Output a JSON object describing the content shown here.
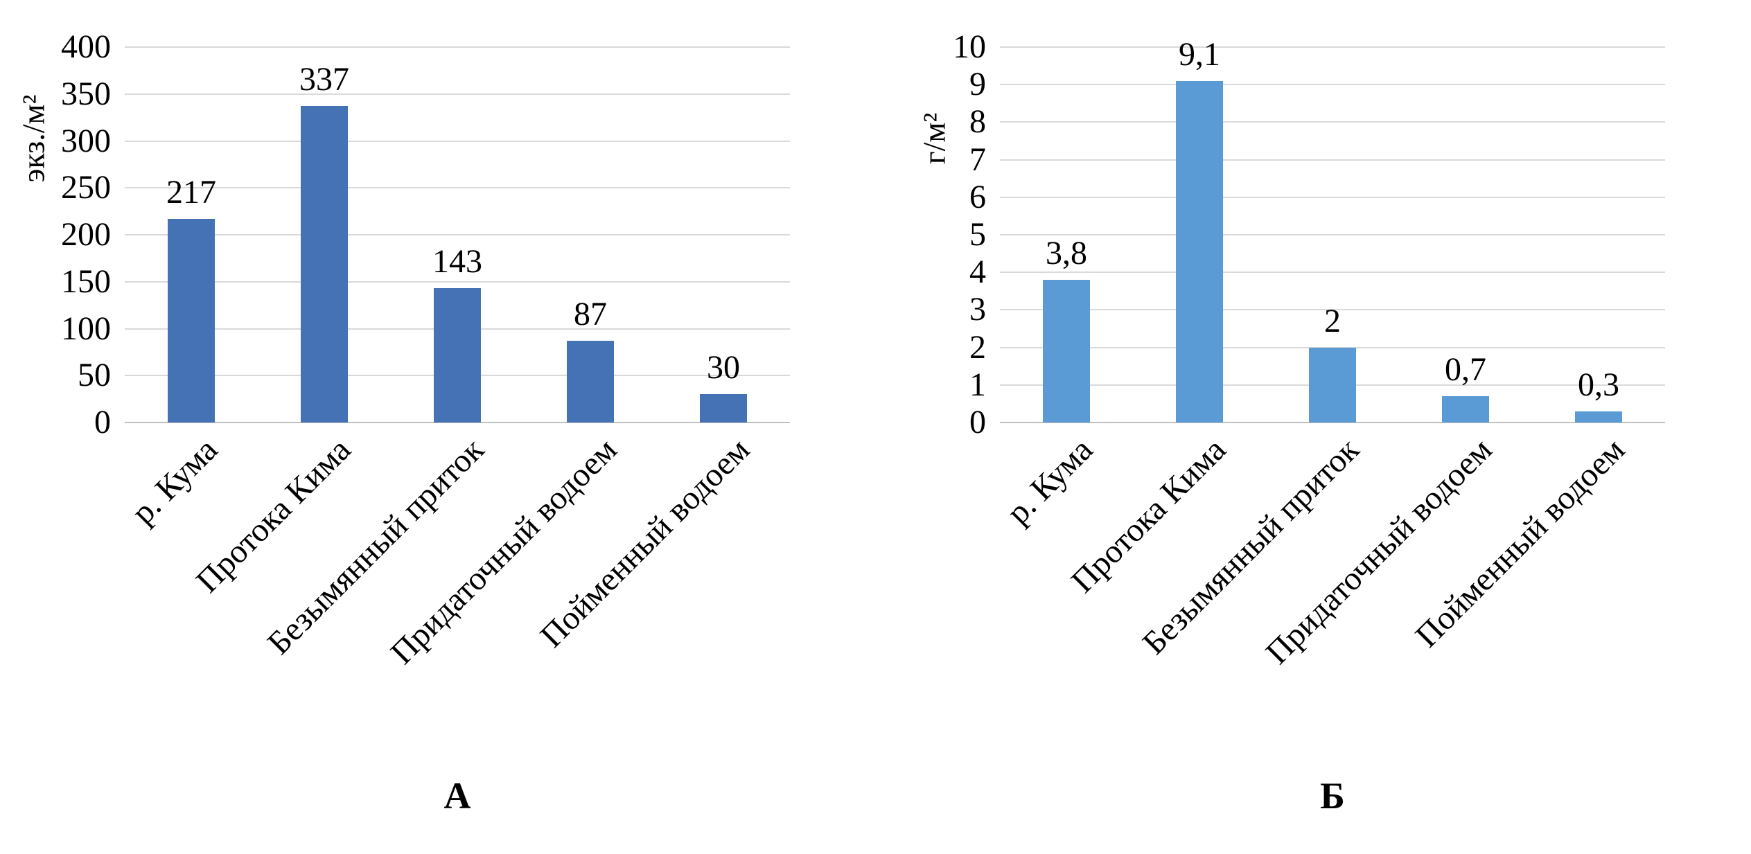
{
  "figure": {
    "background": "#ffffff"
  },
  "chart_data": [
    {
      "type": "bar",
      "caption": "А",
      "ylabel": "экз./м²",
      "xlabel": "",
      "categories": [
        "р. Кума",
        "Протока Кима",
        "Безымянный приток",
        "Придаточный водоем",
        "Пойменный водоем"
      ],
      "values": [
        217,
        337,
        143,
        87,
        30
      ],
      "value_labels": [
        "217",
        "337",
        "143",
        "87",
        "30"
      ],
      "ylim": [
        0,
        400
      ],
      "yticks": [
        0,
        50,
        100,
        150,
        200,
        250,
        300,
        350,
        400
      ],
      "bar_color": "#4472b4",
      "gridline_color": "#d9d9d9",
      "grid": "horizontal",
      "legend": "none"
    },
    {
      "type": "bar",
      "caption": "Б",
      "ylabel": "г/м²",
      "xlabel": "",
      "categories": [
        "р. Кума",
        "Протока Кима",
        "Безымянный приток",
        "Придаточный водоем",
        "Пойменный водоем"
      ],
      "values": [
        3.8,
        9.1,
        2,
        0.7,
        0.3
      ],
      "value_labels": [
        "3,8",
        "9,1",
        "2",
        "0,7",
        "0,3"
      ],
      "ylim": [
        0,
        10
      ],
      "yticks": [
        0,
        1,
        2,
        3,
        4,
        5,
        6,
        7,
        8,
        9,
        10
      ],
      "bar_color": "#5b9bd5",
      "gridline_color": "#d9d9d9",
      "grid": "horizontal",
      "legend": "none"
    }
  ]
}
